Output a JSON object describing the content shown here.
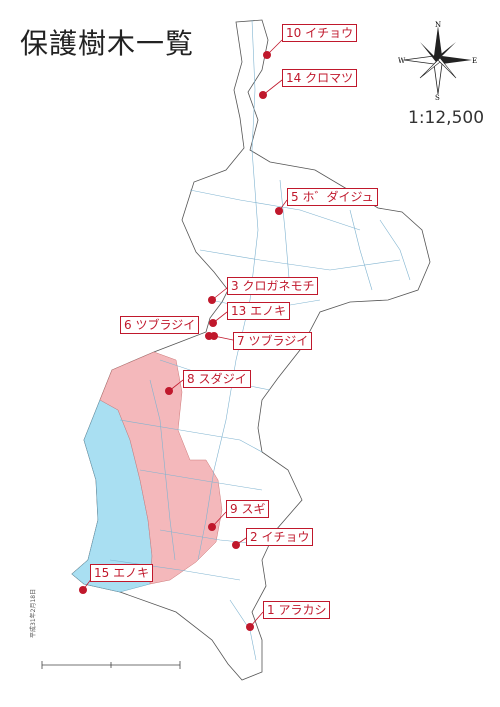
{
  "title": "保護樹木一覧",
  "scale": "1:12,500",
  "compass": {
    "n": "N",
    "s": "S",
    "e": "E",
    "w": "W",
    "icon": "compass-rose-icon"
  },
  "colors": {
    "marker": "#c0182c",
    "pink_zone": "#f4b8bb",
    "blue_zone": "#a9dff2",
    "streets": "#7fb3d0",
    "outline": "#555555"
  },
  "trees": [
    {
      "label": "10 イチョウ"
    },
    {
      "label": "14 クロマツ"
    },
    {
      "label": "5 ホ゛ダイジュ"
    },
    {
      "label": "3 クロガネモチ"
    },
    {
      "label": "13 エノキ"
    },
    {
      "label": "6 ツブラジイ"
    },
    {
      "label": "7 ツブラジイ"
    },
    {
      "label": "8 スダジイ"
    },
    {
      "label": "9 スギ"
    },
    {
      "label": "2 イチョウ"
    },
    {
      "label": "15 エノキ"
    },
    {
      "label": "1 アラカシ"
    }
  ],
  "date_note": "平成31年2月18日"
}
